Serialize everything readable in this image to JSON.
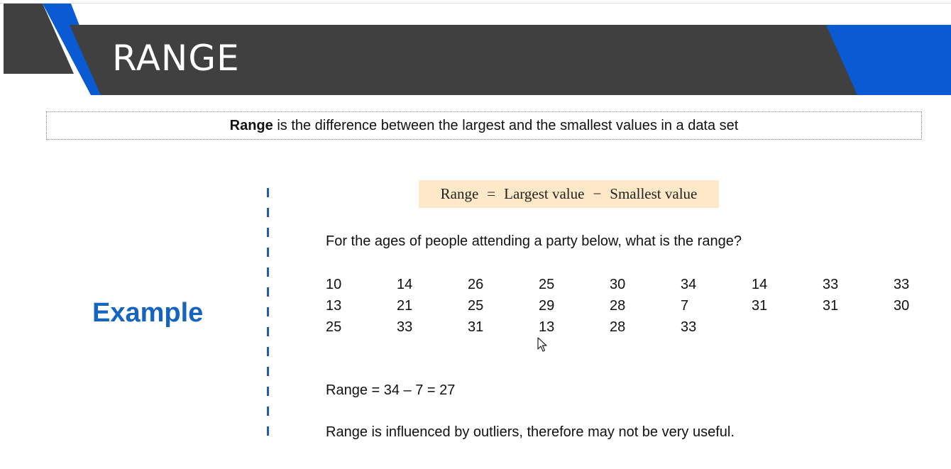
{
  "slide": {
    "title": "RANGE",
    "definition": {
      "term": "Range",
      "text": " is the difference between the largest and the smallest values in a data set"
    },
    "example_label": "Example",
    "formula": {
      "left": "Range",
      "equals": "=",
      "term1": "Largest value",
      "minus": "−",
      "term2": "Smallest value"
    },
    "question": "For the ages of people attending a party below, what is the range?",
    "ages": [
      [
        "10",
        "14",
        "26",
        "25",
        "30",
        "34",
        "14",
        "33",
        "33"
      ],
      [
        "13",
        "21",
        "25",
        "29",
        "28",
        "7",
        "31",
        "31",
        "30"
      ],
      [
        "25",
        "33",
        "31",
        "13",
        "28",
        "33"
      ]
    ],
    "result": "Range = 34 – 7 = 27",
    "note": "Range is influenced by outliers, therefore may not be very useful."
  },
  "colors": {
    "banner_dark": "#404040",
    "banner_accent": "#0a5ad4",
    "example_blue": "#1565c0",
    "formula_bg": "#fde9c8",
    "divider": "#1f5bb5"
  },
  "icons": [
    "mouse-pointer-icon"
  ]
}
